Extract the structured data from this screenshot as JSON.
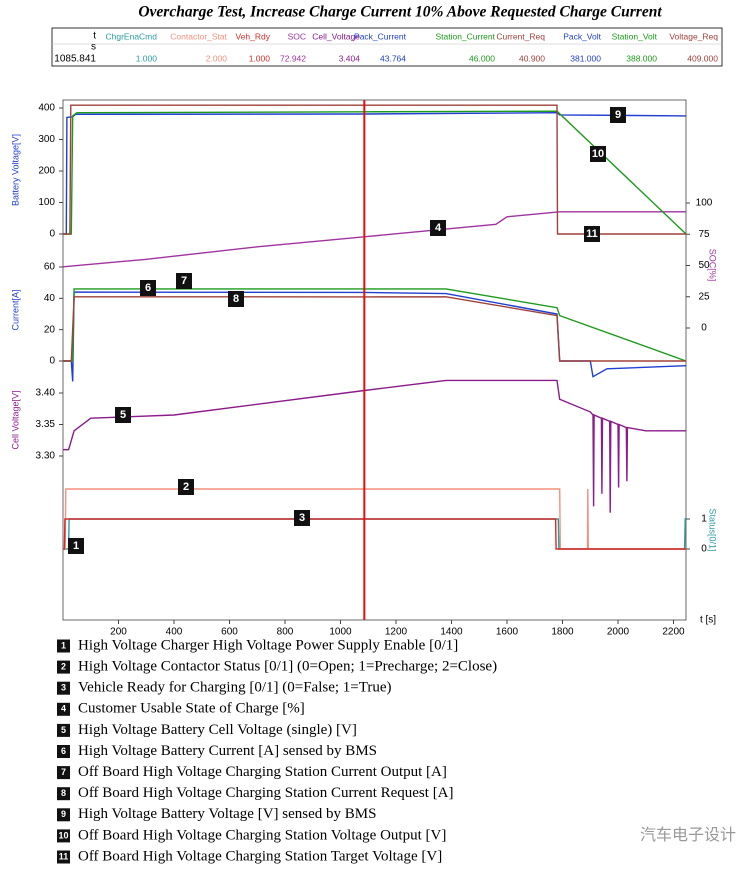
{
  "title": "Overcharge Test, Increase Charge Current 10% Above Requested Charge Current",
  "cursor": {
    "label": "t",
    "unit": "s",
    "time": 1085.841
  },
  "x_axis": {
    "label": "t [s]",
    "xlim": [
      0,
      2245
    ],
    "xticks": [
      200,
      400,
      600,
      800,
      1000,
      1200,
      1400,
      1600,
      1800,
      2000,
      2200
    ]
  },
  "chart_data": [
    {
      "type": "line",
      "ylabel": "Status[0/1]",
      "axis_side": "right",
      "ylim": [
        0,
        1
      ],
      "yticks": [
        0,
        1
      ],
      "series": [
        {
          "name": "ChgrEnaCmd",
          "label": "1",
          "cursor_value": "1.000",
          "color": "#2a9d9d",
          "x": [
            0,
            20,
            22,
            1785,
            1787,
            2240,
            2242,
            2245
          ],
          "values": [
            0,
            0,
            1,
            1,
            0,
            0,
            1,
            1
          ]
        },
        {
          "name": "Contactor_Stat",
          "label": "2",
          "cursor_value": "2.000",
          "color": "#f4907c",
          "x": [
            0,
            8,
            10,
            1790,
            1792,
            1890,
            1891,
            1893,
            2245
          ],
          "values": [
            0,
            0,
            2,
            2,
            0,
            0,
            2,
            0,
            0
          ]
        },
        {
          "name": "Veh_Rdy",
          "label": "3",
          "cursor_value": "1.000",
          "color": "#d42a2a",
          "x": [
            0,
            5,
            7,
            1775,
            1777,
            2245
          ],
          "values": [
            0,
            0,
            1,
            1,
            0,
            0
          ]
        }
      ]
    },
    {
      "type": "line",
      "ylabel": "SOC[%]",
      "axis_side": "right",
      "ylim": [
        0,
        100
      ],
      "yticks": [
        0,
        25,
        50,
        75,
        100
      ],
      "series": [
        {
          "name": "SOC",
          "label": "4",
          "cursor_value": "72.942",
          "color": "#a0339f",
          "x": [
            0,
            300,
            700,
            1085.841,
            1560,
            1600,
            1790,
            2245
          ],
          "values": [
            49,
            55,
            65,
            72.942,
            83,
            89,
            93,
            93
          ]
        }
      ]
    },
    {
      "type": "line",
      "ylabel": "Cell Voltage[V]",
      "axis_side": "left",
      "ylim": [
        3.3,
        3.4
      ],
      "yticks": [
        {
          "value": 3.3,
          "label": "3.30"
        },
        {
          "value": 3.35,
          "label": "3.35"
        },
        {
          "value": 3.4,
          "label": "3.40"
        }
      ],
      "series": [
        {
          "name": "Cell_Voltage",
          "label": "5",
          "cursor_value": "3.404",
          "color": "#8b1a8b",
          "x": [
            0,
            20,
            40,
            100,
            400,
            1085.841,
            1380,
            1780,
            1790,
            1900,
            1910,
            1912,
            1914,
            1940,
            1942,
            1944,
            1970,
            1972,
            1974,
            2000,
            2002,
            2004,
            2030,
            2032,
            2034,
            2100,
            2245
          ],
          "values": [
            3.31,
            3.31,
            3.34,
            3.36,
            3.365,
            3.404,
            3.42,
            3.42,
            3.39,
            3.37,
            3.365,
            3.22,
            3.365,
            3.36,
            3.24,
            3.36,
            3.355,
            3.21,
            3.355,
            3.35,
            3.25,
            3.35,
            3.345,
            3.26,
            3.345,
            3.34,
            3.34
          ]
        }
      ]
    },
    {
      "type": "line",
      "ylabel": "Current[A]",
      "axis_side": "left",
      "ylim": [
        0,
        60
      ],
      "yticks": [
        0,
        20,
        40,
        60
      ],
      "series": [
        {
          "name": "Pack_Current",
          "label": "6",
          "cursor_value": "43.764",
          "color": "#1f3fd0",
          "x": [
            0,
            30,
            35,
            40,
            1085.841,
            1380,
            1780,
            1790,
            1900,
            1910,
            1960,
            2245
          ],
          "values": [
            0,
            0,
            -13,
            44,
            43.764,
            43,
            30,
            0,
            0,
            -10,
            -5,
            -3
          ]
        },
        {
          "name": "Station_Current",
          "label": "7",
          "cursor_value": "46.000",
          "color": "#1c9a1c",
          "x": [
            0,
            35,
            40,
            1085.841,
            1380,
            1780,
            1790,
            2245
          ],
          "values": [
            0,
            0,
            46,
            46,
            46,
            34,
            29,
            0
          ]
        },
        {
          "name": "Current_Req",
          "label": "8",
          "cursor_value": "40.900",
          "color": "#a0403a",
          "x": [
            0,
            30,
            40,
            1085.841,
            1380,
            1780,
            1790,
            2245
          ],
          "values": [
            0,
            0,
            41,
            40.9,
            41,
            29,
            0,
            0
          ]
        }
      ]
    },
    {
      "type": "line",
      "ylabel": "Battery Voltage[V]",
      "axis_side": "left",
      "ylim": [
        0,
        400
      ],
      "yticks": [
        0,
        100,
        200,
        300,
        400
      ],
      "series": [
        {
          "name": "Pack_Volt",
          "label": "9",
          "cursor_value": "381.000",
          "color": "#1f3fd0",
          "x": [
            0,
            12,
            14,
            35,
            45,
            1085.841,
            1780,
            1790,
            2245
          ],
          "values": [
            0,
            0,
            370,
            372,
            380,
            381,
            385,
            378,
            375
          ]
        },
        {
          "name": "Station_Volt",
          "label": "10",
          "cursor_value": "388.000",
          "color": "#1c9a1c",
          "x": [
            0,
            30,
            35,
            50,
            1085.841,
            1780,
            2245
          ],
          "values": [
            0,
            0,
            375,
            385,
            388,
            390,
            0
          ]
        },
        {
          "name": "Voltage_Req",
          "label": "11",
          "cursor_value": "409.000",
          "color": "#a0403a",
          "x": [
            0,
            25,
            28,
            1085.841,
            1780,
            1782,
            2245
          ],
          "values": [
            0,
            0,
            409,
            409,
            409,
            0,
            0
          ]
        }
      ]
    }
  ],
  "legend": [
    {
      "label": "1",
      "text": "High Voltage Charger High Voltage Power Supply Enable [0/1]"
    },
    {
      "label": "2",
      "text": "High Voltage Contactor Status [0/1] (0=Open; 1=Precharge; 2=Close)"
    },
    {
      "label": "3",
      "text": "Vehicle Ready for Charging [0/1] (0=False; 1=True)"
    },
    {
      "label": "4",
      "text": "Customer Usable State of Charge [%]"
    },
    {
      "label": "5",
      "text": "High Voltage Battery Cell Voltage (single) [V]"
    },
    {
      "label": "6",
      "text": "High Voltage Battery Current [A] sensed by BMS"
    },
    {
      "label": "7",
      "text": "Off Board High Voltage Charging Station Current Output [A]"
    },
    {
      "label": "8",
      "text": "Off Board High Voltage Charging Station Current Request [A]"
    },
    {
      "label": "9",
      "text": "High Voltage Battery Voltage [V] sensed by BMS"
    },
    {
      "label": "10",
      "text": "Off Board High Voltage Charging Station Voltage Output [V]"
    },
    {
      "label": "11",
      "text": "Off Board High Voltage Charging Station Target Voltage [V]"
    }
  ],
  "watermark": "汽车电子设计"
}
